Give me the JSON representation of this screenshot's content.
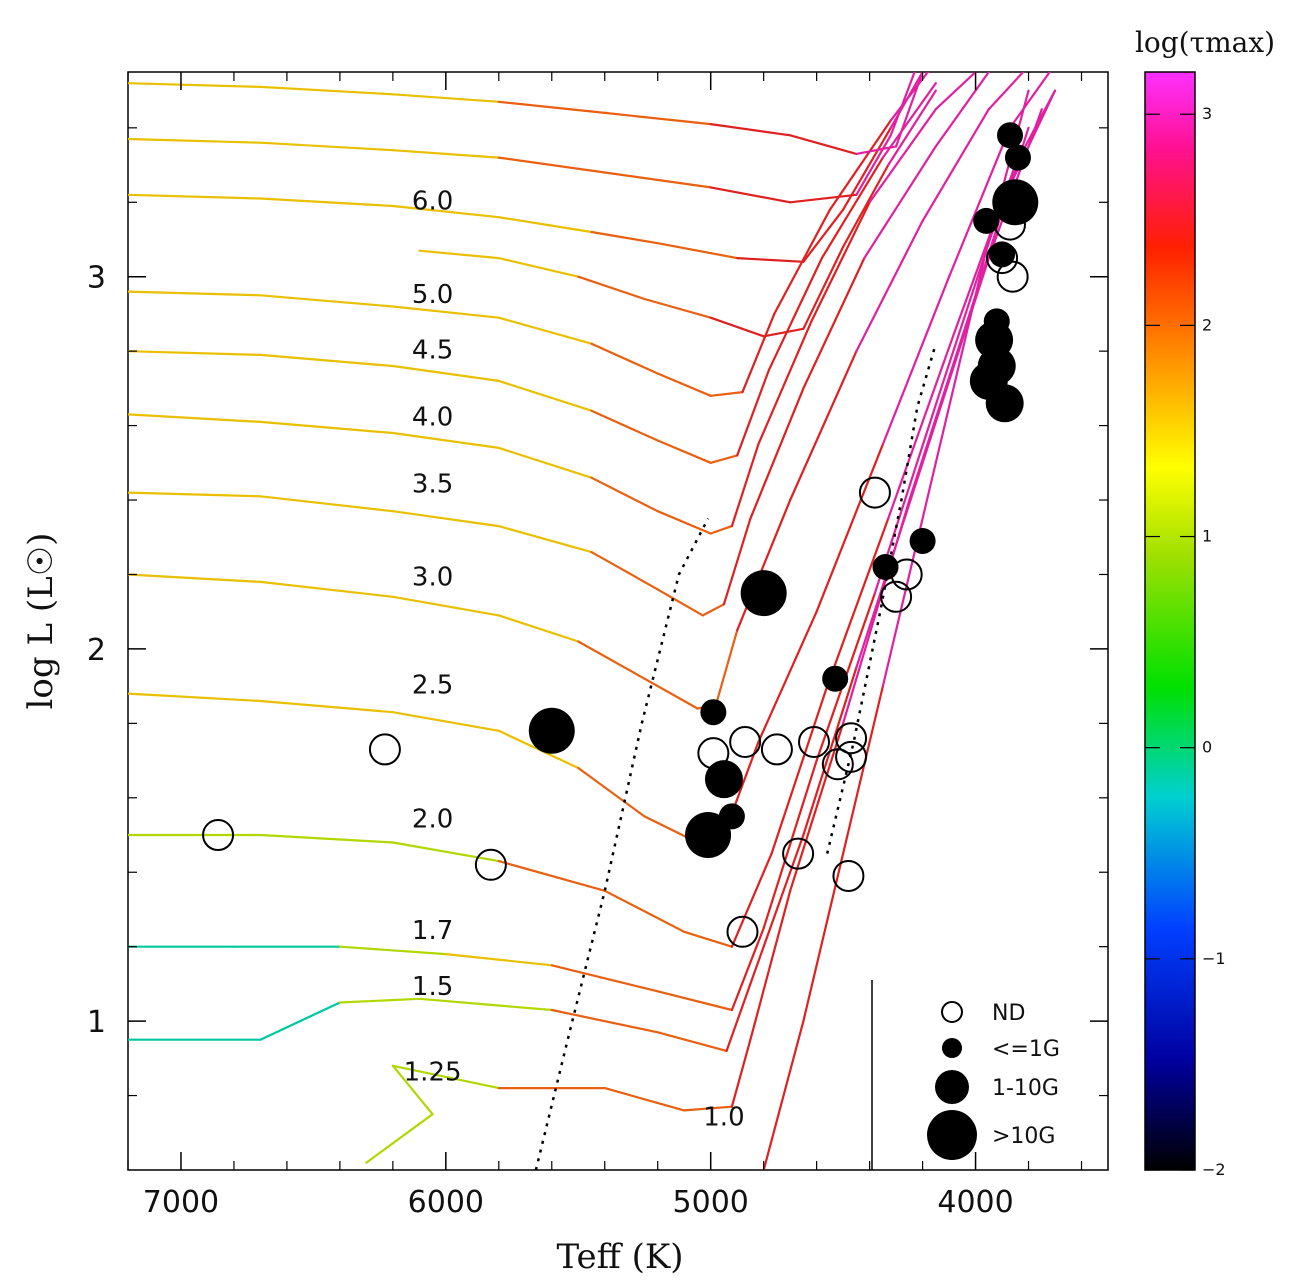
{
  "chart_data": {
    "type": "scatter",
    "title": "",
    "xlabel": "Teff (K)",
    "ylabel": "log L (L☉)",
    "xlim": [
      7200,
      3500
    ],
    "ylim": [
      0.6,
      3.55
    ],
    "x_reversed": true,
    "x_ticks": [
      7000,
      6000,
      5000,
      4000
    ],
    "y_ticks": [
      1,
      2,
      3
    ],
    "colorbar": {
      "label": "log(τmax)",
      "range": [
        -2,
        3.2
      ],
      "ticks": [
        3,
        2,
        1,
        0,
        -1,
        -2
      ],
      "tick_labels": [
        "3",
        "2",
        "1",
        "0",
        "−1",
        "−2"
      ]
    },
    "tracks": [
      {
        "mass_label": "1.0",
        "label_at": [
          4950,
          0.72
        ],
        "points": [
          [
            4800,
            0.6
          ],
          [
            4650,
            1.0
          ],
          [
            4500,
            1.45
          ],
          [
            4350,
            1.9
          ],
          [
            4150,
            2.5
          ],
          [
            3950,
            3.1
          ],
          [
            3800,
            3.5
          ]
        ]
      },
      {
        "mass_label": "1.25",
        "label_at": [
          6050,
          0.84
        ],
        "points": [
          [
            6300,
            0.62
          ],
          [
            6050,
            0.75
          ],
          [
            6200,
            0.88
          ],
          [
            5800,
            0.82
          ],
          [
            5400,
            0.82
          ],
          [
            5100,
            0.76
          ],
          [
            4920,
            0.77
          ],
          [
            4850,
            0.95
          ],
          [
            4700,
            1.35
          ],
          [
            4500,
            1.8
          ],
          [
            4250,
            2.4
          ],
          [
            4000,
            2.95
          ],
          [
            3800,
            3.4
          ]
        ]
      },
      {
        "mass_label": "1.5",
        "label_at": [
          6050,
          1.07
        ],
        "points": [
          [
            7200,
            0.95
          ],
          [
            6700,
            0.95
          ],
          [
            6400,
            1.05
          ],
          [
            6100,
            1.06
          ],
          [
            5600,
            1.03
          ],
          [
            5200,
            0.97
          ],
          [
            4940,
            0.92
          ],
          [
            4850,
            1.1
          ],
          [
            4650,
            1.5
          ],
          [
            4450,
            1.95
          ],
          [
            4200,
            2.5
          ],
          [
            3950,
            3.05
          ],
          [
            3750,
            3.45
          ]
        ]
      },
      {
        "mass_label": "1.7",
        "label_at": [
          6050,
          1.22
        ],
        "points": [
          [
            7200,
            1.2
          ],
          [
            6800,
            1.2
          ],
          [
            6400,
            1.2
          ],
          [
            6000,
            1.18
          ],
          [
            5600,
            1.15
          ],
          [
            5200,
            1.08
          ],
          [
            4920,
            1.03
          ],
          [
            4800,
            1.25
          ],
          [
            4600,
            1.7
          ],
          [
            4380,
            2.15
          ],
          [
            4130,
            2.7
          ],
          [
            3900,
            3.2
          ],
          [
            3700,
            3.5
          ]
        ]
      },
      {
        "mass_label": "2.0",
        "label_at": [
          6050,
          1.52
        ],
        "points": [
          [
            7200,
            1.5
          ],
          [
            6700,
            1.5
          ],
          [
            6200,
            1.48
          ],
          [
            5800,
            1.43
          ],
          [
            5400,
            1.35
          ],
          [
            5100,
            1.24
          ],
          [
            4920,
            1.2
          ],
          [
            4770,
            1.45
          ],
          [
            4560,
            1.9
          ],
          [
            4330,
            2.35
          ],
          [
            4080,
            2.85
          ],
          [
            3850,
            3.3
          ],
          [
            3700,
            3.5
          ]
        ]
      },
      {
        "mass_label": "2.5",
        "label_at": [
          6050,
          1.88
        ],
        "points": [
          [
            7200,
            1.88
          ],
          [
            6700,
            1.86
          ],
          [
            6200,
            1.83
          ],
          [
            5800,
            1.78
          ],
          [
            5500,
            1.68
          ],
          [
            5250,
            1.55
          ],
          [
            5050,
            1.48
          ],
          [
            4950,
            1.5
          ],
          [
            4820,
            1.75
          ],
          [
            4600,
            2.1
          ],
          [
            4350,
            2.55
          ],
          [
            4100,
            3.0
          ],
          [
            3870,
            3.4
          ],
          [
            3720,
            3.55
          ]
        ]
      },
      {
        "mass_label": "3.0",
        "label_at": [
          6050,
          2.17
        ],
        "points": [
          [
            7200,
            2.2
          ],
          [
            6700,
            2.18
          ],
          [
            6200,
            2.14
          ],
          [
            5800,
            2.09
          ],
          [
            5500,
            2.02
          ],
          [
            5250,
            1.92
          ],
          [
            5050,
            1.84
          ],
          [
            4980,
            1.85
          ],
          [
            4900,
            2.05
          ],
          [
            4700,
            2.4
          ],
          [
            4450,
            2.8
          ],
          [
            4200,
            3.15
          ],
          [
            3950,
            3.45
          ],
          [
            3820,
            3.55
          ]
        ]
      },
      {
        "mass_label": "3.5",
        "label_at": [
          6050,
          2.42
        ],
        "points": [
          [
            7200,
            2.42
          ],
          [
            6700,
            2.41
          ],
          [
            6200,
            2.37
          ],
          [
            5800,
            2.33
          ],
          [
            5450,
            2.26
          ],
          [
            5200,
            2.16
          ],
          [
            5030,
            2.09
          ],
          [
            4950,
            2.12
          ],
          [
            4850,
            2.35
          ],
          [
            4650,
            2.7
          ],
          [
            4420,
            3.05
          ],
          [
            4150,
            3.35
          ],
          [
            3950,
            3.55
          ]
        ]
      },
      {
        "mass_label": "4.0",
        "label_at": [
          6050,
          2.6
        ],
        "points": [
          [
            7200,
            2.63
          ],
          [
            6700,
            2.61
          ],
          [
            6200,
            2.58
          ],
          [
            5800,
            2.54
          ],
          [
            5450,
            2.46
          ],
          [
            5200,
            2.37
          ],
          [
            5000,
            2.31
          ],
          [
            4920,
            2.33
          ],
          [
            4820,
            2.55
          ],
          [
            4620,
            2.88
          ],
          [
            4400,
            3.2
          ],
          [
            4150,
            3.45
          ],
          [
            4000,
            3.55
          ]
        ]
      },
      {
        "mass_label": "4.5",
        "label_at": [
          6050,
          2.78
        ],
        "points": [
          [
            7200,
            2.8
          ],
          [
            6700,
            2.79
          ],
          [
            6200,
            2.76
          ],
          [
            5800,
            2.72
          ],
          [
            5450,
            2.64
          ],
          [
            5200,
            2.56
          ],
          [
            5000,
            2.5
          ],
          [
            4900,
            2.52
          ],
          [
            4780,
            2.75
          ],
          [
            4580,
            3.05
          ],
          [
            4350,
            3.32
          ],
          [
            4150,
            3.52
          ]
        ]
      },
      {
        "mass_label": "5.0",
        "label_at": [
          6050,
          2.93
        ],
        "points": [
          [
            7200,
            2.96
          ],
          [
            6700,
            2.95
          ],
          [
            6200,
            2.92
          ],
          [
            5800,
            2.89
          ],
          [
            5450,
            2.82
          ],
          [
            5200,
            2.74
          ],
          [
            5000,
            2.68
          ],
          [
            4880,
            2.69
          ],
          [
            4760,
            2.9
          ],
          [
            4550,
            3.18
          ],
          [
            4320,
            3.42
          ],
          [
            4180,
            3.55
          ]
        ]
      },
      {
        "mass_label": "",
        "label_at": [],
        "points": [
          [
            6100,
            3.07
          ],
          [
            5800,
            3.05
          ],
          [
            5500,
            3.0
          ],
          [
            5250,
            2.94
          ],
          [
            5000,
            2.89
          ],
          [
            4800,
            2.84
          ],
          [
            4650,
            2.86
          ],
          [
            4500,
            3.08
          ],
          [
            4330,
            3.3
          ],
          [
            4150,
            3.5
          ]
        ]
      },
      {
        "mass_label": "6.0",
        "label_at": [
          6050,
          3.18
        ],
        "points": [
          [
            7200,
            3.22
          ],
          [
            6700,
            3.21
          ],
          [
            6200,
            3.19
          ],
          [
            5800,
            3.16
          ],
          [
            5450,
            3.12
          ],
          [
            5200,
            3.09
          ],
          [
            4900,
            3.05
          ],
          [
            4650,
            3.04
          ],
          [
            4500,
            3.18
          ],
          [
            4320,
            3.4
          ],
          [
            4200,
            3.55
          ]
        ]
      },
      {
        "mass_label": "",
        "label_at": [],
        "points": [
          [
            7200,
            3.37
          ],
          [
            6700,
            3.36
          ],
          [
            6200,
            3.34
          ],
          [
            5800,
            3.32
          ],
          [
            5400,
            3.28
          ],
          [
            5000,
            3.24
          ],
          [
            4700,
            3.2
          ],
          [
            4450,
            3.22
          ],
          [
            4320,
            3.38
          ],
          [
            4230,
            3.55
          ]
        ]
      },
      {
        "mass_label": "",
        "label_at": [],
        "points": [
          [
            7200,
            3.52
          ],
          [
            6700,
            3.51
          ],
          [
            6200,
            3.49
          ],
          [
            5800,
            3.47
          ],
          [
            5400,
            3.44
          ],
          [
            5000,
            3.41
          ],
          [
            4700,
            3.38
          ],
          [
            4450,
            3.33
          ],
          [
            4300,
            3.35
          ],
          [
            4200,
            3.55
          ]
        ]
      }
    ],
    "boundary_line": [
      [
        5660,
        0.6
      ],
      [
        5540,
        0.95
      ],
      [
        5400,
        1.35
      ],
      [
        5260,
        1.8
      ],
      [
        5120,
        2.2
      ],
      [
        5010,
        2.35
      ]
    ],
    "boundary_line_2": [
      [
        4560,
        1.45
      ],
      [
        4460,
        1.75
      ],
      [
        4360,
        2.1
      ],
      [
        4280,
        2.4
      ],
      [
        4220,
        2.65
      ],
      [
        4150,
        2.82
      ]
    ],
    "stars_nd": [
      [
        6860,
        1.5
      ],
      [
        6230,
        1.73
      ],
      [
        5830,
        1.42
      ],
      [
        4990,
        1.72
      ],
      [
        4870,
        1.75
      ],
      [
        4750,
        1.73
      ],
      [
        4670,
        1.45
      ],
      [
        4610,
        1.75
      ],
      [
        4520,
        1.69
      ],
      [
        4470,
        1.76
      ],
      [
        4470,
        1.71
      ],
      [
        4480,
        1.39
      ],
      [
        4880,
        1.24
      ],
      [
        4380,
        2.42
      ],
      [
        4300,
        2.14
      ],
      [
        4260,
        2.2
      ],
      [
        3900,
        3.05
      ],
      [
        3860,
        3.0
      ],
      [
        3870,
        3.14
      ]
    ],
    "stars_le1g": [
      [
        4990,
        1.83
      ],
      [
        4920,
        1.55
      ],
      [
        4530,
        1.92
      ],
      [
        4340,
        2.22
      ],
      [
        4200,
        2.29
      ],
      [
        3900,
        3.06
      ],
      [
        3870,
        3.38
      ],
      [
        3960,
        3.15
      ],
      [
        3920,
        2.88
      ],
      [
        3840,
        3.32
      ]
    ],
    "stars_1to10g": [
      [
        4950,
        1.65
      ],
      [
        3950,
        2.72
      ],
      [
        3920,
        2.76
      ],
      [
        3890,
        2.66
      ],
      [
        3930,
        2.83
      ]
    ],
    "stars_gt10g": [
      [
        5600,
        1.78
      ],
      [
        5010,
        1.5
      ],
      [
        4800,
        2.15
      ],
      [
        3850,
        3.2
      ]
    ],
    "legend": [
      {
        "marker": "open",
        "label": "ND"
      },
      {
        "marker": "small",
        "label": "<=1G"
      },
      {
        "marker": "medium",
        "label": "1-10G"
      },
      {
        "marker": "large",
        "label": ">10G"
      }
    ]
  }
}
